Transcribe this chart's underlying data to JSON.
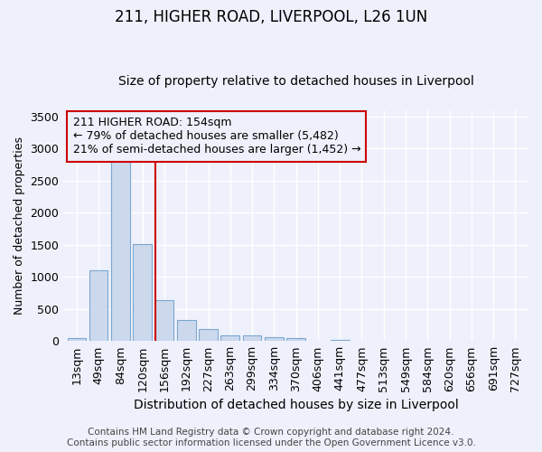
{
  "title": "211, HIGHER ROAD, LIVERPOOL, L26 1UN",
  "subtitle": "Size of property relative to detached houses in Liverpool",
  "xlabel": "Distribution of detached houses by size in Liverpool",
  "ylabel": "Number of detached properties",
  "categories": [
    "13sqm",
    "49sqm",
    "84sqm",
    "120sqm",
    "156sqm",
    "192sqm",
    "227sqm",
    "263sqm",
    "299sqm",
    "334sqm",
    "370sqm",
    "406sqm",
    "441sqm",
    "477sqm",
    "513sqm",
    "549sqm",
    "584sqm",
    "620sqm",
    "656sqm",
    "691sqm",
    "727sqm"
  ],
  "values": [
    50,
    1100,
    2900,
    1510,
    640,
    330,
    185,
    95,
    85,
    55,
    40,
    5,
    20,
    0,
    0,
    0,
    0,
    0,
    0,
    0,
    0
  ],
  "bar_color": "#ccd9ed",
  "bar_edge_color": "#7ba7d0",
  "red_line_index": 4,
  "annotation_text": "211 HIGHER ROAD: 154sqm\n← 79% of detached houses are smaller (5,482)\n21% of semi-detached houses are larger (1,452) →",
  "annotation_box_color": "#cc0000",
  "ylim": [
    0,
    3600
  ],
  "yticks": [
    0,
    500,
    1000,
    1500,
    2000,
    2500,
    3000,
    3500
  ],
  "footer_line1": "Contains HM Land Registry data © Crown copyright and database right 2024.",
  "footer_line2": "Contains public sector information licensed under the Open Government Licence v3.0.",
  "bg_color": "#eef1fb",
  "grid_color": "#ffffff",
  "title_fontsize": 12,
  "subtitle_fontsize": 10,
  "ylabel_fontsize": 9,
  "xlabel_fontsize": 10,
  "tick_fontsize": 9,
  "annotation_fontsize": 9,
  "footer_fontsize": 7.5
}
